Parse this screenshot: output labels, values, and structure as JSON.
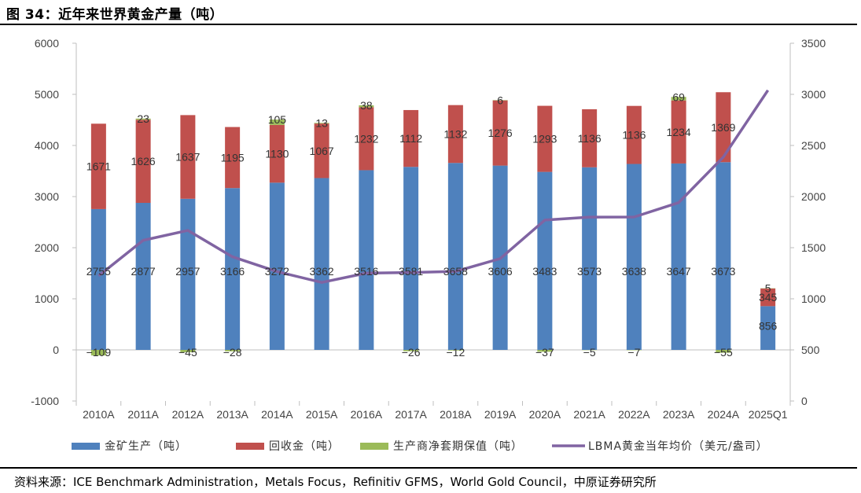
{
  "header": {
    "title": "图 34：近年来世界黄金产量（吨）"
  },
  "footer": {
    "source": "资料来源：ICE Benchmark Administration，Metals Focus，Refinitiv GFMS，World Gold Council，中原证券研究所"
  },
  "colors": {
    "mine": "#4f81bd",
    "recycle": "#c0504d",
    "hedge": "#9bbb59",
    "price": "#8064a2"
  },
  "chart_data": {
    "type": "bar",
    "stacked": true,
    "categories": [
      "2010A",
      "2011A",
      "2012A",
      "2013A",
      "2014A",
      "2015A",
      "2016A",
      "2017A",
      "2018A",
      "2019A",
      "2020A",
      "2021A",
      "2022A",
      "2023A",
      "2024A",
      "2025Q1"
    ],
    "series": [
      {
        "name": "金矿生产（吨）",
        "type": "bar",
        "axis": "left",
        "values": [
          2755,
          2877,
          2957,
          3166,
          3272,
          3362,
          3516,
          3581,
          3658,
          3606,
          3483,
          3573,
          3638,
          3647,
          3673,
          856
        ]
      },
      {
        "name": "回收金（吨）",
        "type": "bar",
        "axis": "left",
        "values": [
          1671,
          1626,
          1637,
          1195,
          1130,
          1067,
          1232,
          1112,
          1132,
          1276,
          1293,
          1136,
          1136,
          1234,
          1369,
          345
        ]
      },
      {
        "name": "生产商净套期保值（吨）",
        "type": "bar",
        "axis": "left",
        "values": [
          -109,
          23,
          -45,
          -28,
          105,
          13,
          38,
          -26,
          -12,
          6,
          -37,
          -5,
          -7,
          69,
          -55,
          5
        ]
      },
      {
        "name": "LBMA黄金当年均价（美元/盎司）",
        "type": "line",
        "axis": "right",
        "values": [
          1225,
          1572,
          1669,
          1411,
          1266,
          1160,
          1251,
          1257,
          1268,
          1393,
          1770,
          1799,
          1800,
          1941,
          2386,
          3040
        ]
      }
    ],
    "y_left": {
      "range": [
        -1000,
        6000
      ],
      "ticks": [
        "-1000",
        "0",
        "1000",
        "2000",
        "3000",
        "4000",
        "5000",
        "6000"
      ]
    },
    "y_right": {
      "range": [
        0,
        3500
      ],
      "ticks": [
        "0",
        "500",
        "1000",
        "1500",
        "2000",
        "2500",
        "3000",
        "3500"
      ]
    },
    "grid": false,
    "legend": "bottom"
  }
}
